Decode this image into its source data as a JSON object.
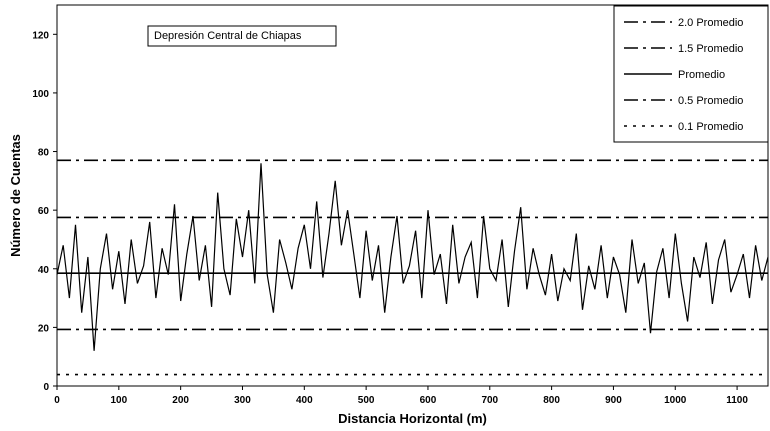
{
  "chart_data": {
    "type": "line",
    "annotation": "Depresión Central de Chiapas",
    "title": "",
    "xlabel": "Distancia Horizontal (m)",
    "ylabel": "Número de Cuentas",
    "xlim": [
      0,
      1150
    ],
    "ylim": [
      0,
      130
    ],
    "xticks": [
      0,
      100,
      200,
      300,
      400,
      500,
      600,
      700,
      800,
      900,
      1000,
      1100
    ],
    "yticks": [
      0,
      20,
      40,
      60,
      80,
      100,
      120
    ],
    "grid": false,
    "legend_position": "top-right",
    "reference_lines": [
      {
        "name": "2.0 Promedio",
        "value": 77,
        "style": "dash-dot"
      },
      {
        "name": "1.5 Promedio",
        "value": 57.5,
        "style": "dash-dot"
      },
      {
        "name": "Promedio",
        "value": 38.5,
        "style": "solid"
      },
      {
        "name": "0.5 Promedio",
        "value": 19.3,
        "style": "dash-dot"
      },
      {
        "name": "0.1 Promedio",
        "value": 3.9,
        "style": "dotted"
      }
    ],
    "series": [
      {
        "x": [
          0,
          10,
          20,
          30,
          40,
          50,
          60,
          70,
          80,
          90,
          100,
          110,
          120,
          130,
          140,
          150,
          160,
          170,
          180,
          190,
          200,
          210,
          220,
          230,
          240,
          250,
          260,
          270,
          280,
          290,
          300,
          310,
          320,
          330,
          340,
          350,
          360,
          370,
          380,
          390,
          400,
          410,
          420,
          430,
          440,
          450,
          460,
          470,
          480,
          490,
          500,
          510,
          520,
          530,
          540,
          550,
          560,
          570,
          580,
          590,
          600,
          610,
          620,
          630,
          640,
          650,
          660,
          670,
          680,
          690,
          700,
          710,
          720,
          730,
          740,
          750,
          760,
          770,
          780,
          790,
          800,
          810,
          820,
          830,
          840,
          850,
          860,
          870,
          880,
          890,
          900,
          910,
          920,
          930,
          940,
          950,
          960,
          970,
          980,
          990,
          1000,
          1010,
          1020,
          1030,
          1040,
          1050,
          1060,
          1070,
          1080,
          1090,
          1100,
          1110,
          1120,
          1130,
          1140,
          1150
        ],
        "y": [
          38,
          48,
          30,
          55,
          25,
          44,
          12,
          40,
          52,
          33,
          46,
          28,
          50,
          35,
          41,
          56,
          30,
          47,
          38,
          62,
          29,
          45,
          58,
          36,
          48,
          27,
          66,
          40,
          31,
          57,
          44,
          60,
          35,
          76,
          38,
          25,
          50,
          42,
          33,
          47,
          55,
          40,
          63,
          37,
          52,
          70,
          48,
          60,
          45,
          30,
          53,
          36,
          48,
          25,
          44,
          58,
          35,
          41,
          53,
          30,
          60,
          38,
          45,
          28,
          55,
          35,
          44,
          49,
          30,
          58,
          40,
          36,
          50,
          27,
          46,
          61,
          33,
          47,
          38,
          31,
          45,
          29,
          40,
          36,
          52,
          26,
          41,
          33,
          48,
          30,
          44,
          38,
          25,
          50,
          35,
          42,
          18,
          39,
          47,
          30,
          52,
          35,
          22,
          44,
          37,
          49,
          28,
          43,
          50,
          32,
          38,
          45,
          30,
          48,
          36,
          44
        ]
      }
    ]
  }
}
